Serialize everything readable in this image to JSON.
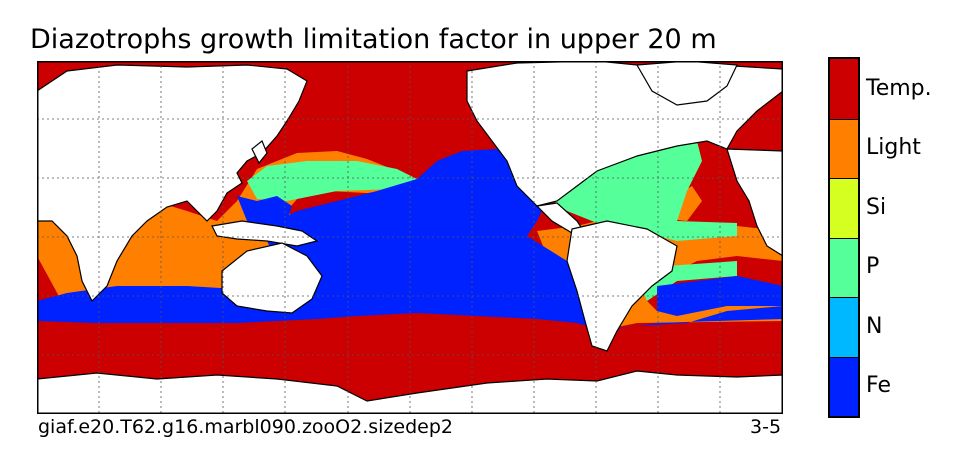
{
  "title": "Diazotrophs growth limitation factor in upper 20 m",
  "caption_left": "giaf.e20.T62.g16.marbl090.zooO2.sizedep2",
  "caption_right": "3-5",
  "legend": {
    "categories": [
      {
        "label": "Temp.",
        "color": "#cc0000"
      },
      {
        "label": "Light",
        "color": "#ff8000"
      },
      {
        "label": "Si",
        "color": "#d5ff20"
      },
      {
        "label": "P",
        "color": "#55ff99"
      },
      {
        "label": "N",
        "color": "#00b8ff"
      },
      {
        "label": "Fe",
        "color": "#0022ff"
      }
    ]
  },
  "colors": {
    "land": "#ffffff",
    "coastline": "#000000",
    "gridline": "#555555"
  }
}
